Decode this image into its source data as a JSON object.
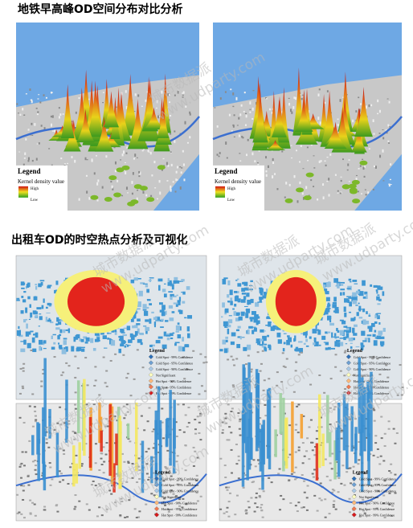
{
  "sections": [
    {
      "title": "地铁早高峰OD空间分布对比分析",
      "legend": {
        "title": "Legend",
        "label": "Kernel density value",
        "high": "High",
        "low": "Low"
      }
    },
    {
      "title": "出租车OD的时空热点分析及可视化",
      "legend": {
        "title": "Legend",
        "items": [
          "Cold Spot - 99% Confidence",
          "Cold Spot - 95% Confidence",
          "Cold Spot - 90% Confidence",
          "Not Significant",
          "Hot Spot - 90% Confidence",
          "Hot Spot - 95% Confidence",
          "Hot Spot - 99% Confidence"
        ]
      }
    }
  ],
  "watermark": {
    "name": "城市数据派",
    "url": "www.udparty.com"
  }
}
